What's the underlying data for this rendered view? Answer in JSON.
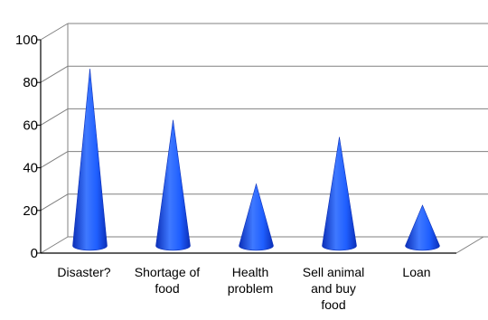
{
  "chart_data": {
    "type": "bar",
    "shape": "3d-cone",
    "title": "",
    "xlabel": "",
    "ylabel": "",
    "categories": [
      "Disaster?",
      "Shortage of food",
      "Health problem",
      "Sell animal and buy food",
      "Loan"
    ],
    "category_lines": [
      [
        "Disaster?"
      ],
      [
        "Shortage of",
        "food"
      ],
      [
        "Health",
        "problem"
      ],
      [
        "Sell animal",
        "and buy",
        "food"
      ],
      [
        "Loan"
      ]
    ],
    "values": [
      83,
      59,
      29,
      51,
      19
    ],
    "ylim": [
      0,
      100
    ],
    "yticks": [
      "0",
      "20",
      "40",
      "60",
      "80",
      "100"
    ],
    "grid": true,
    "legend": "none",
    "colors": {
      "cone": "#1f5fff",
      "cone_dark": "#0b2fb8",
      "cone_light": "#5a8cff",
      "grid": "#808080",
      "axis": "#000000"
    }
  }
}
